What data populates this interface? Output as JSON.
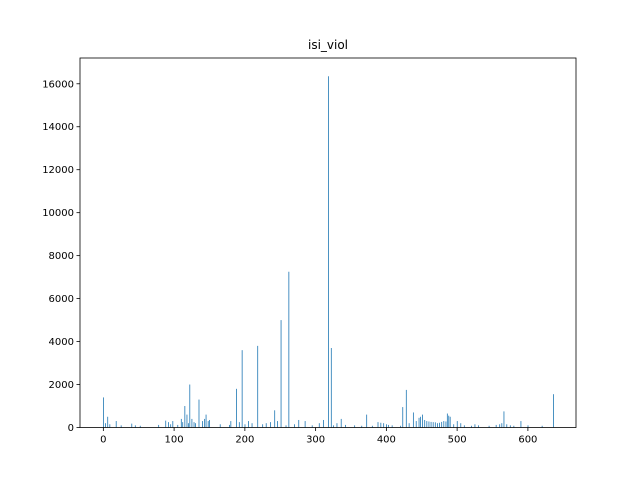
{
  "chart_data": {
    "type": "bar",
    "title": "isi_viol",
    "xlabel": "",
    "ylabel": "",
    "xlim": [
      -33,
      668
    ],
    "ylim": [
      0,
      17200
    ],
    "xticks": [
      0,
      100,
      200,
      300,
      400,
      500,
      600
    ],
    "yticks": [
      0,
      2000,
      4000,
      6000,
      8000,
      10000,
      12000,
      14000,
      16000
    ],
    "grid": false,
    "bar_color": "#1f77b4",
    "x": [
      0,
      3,
      6,
      9,
      18,
      25,
      40,
      45,
      52,
      78,
      88,
      92,
      95,
      98,
      105,
      110,
      112,
      115,
      118,
      120,
      122,
      125,
      128,
      130,
      135,
      140,
      143,
      145,
      148,
      150,
      165,
      178,
      180,
      188,
      192,
      196,
      200,
      205,
      210,
      218,
      225,
      230,
      236,
      242,
      246,
      251,
      258,
      262,
      270,
      276,
      285,
      295,
      305,
      311,
      318,
      322,
      325,
      330,
      336,
      342,
      355,
      365,
      372,
      380,
      388,
      392,
      396,
      400,
      403,
      408,
      420,
      423,
      428,
      432,
      438,
      442,
      446,
      448,
      451,
      454,
      457,
      460,
      463,
      466,
      469,
      472,
      475,
      478,
      481,
      484,
      486,
      488,
      490,
      495,
      500,
      505,
      510,
      520,
      525,
      530,
      545,
      555,
      560,
      563,
      566,
      570,
      575,
      580,
      590,
      600,
      620,
      636
    ],
    "values": [
      1400,
      200,
      500,
      150,
      300,
      100,
      180,
      100,
      80,
      120,
      320,
      250,
      150,
      300,
      120,
      400,
      250,
      1000,
      600,
      200,
      2000,
      400,
      250,
      200,
      1300,
      300,
      400,
      600,
      300,
      350,
      150,
      120,
      300,
      1800,
      250,
      3600,
      150,
      300,
      200,
      3800,
      150,
      200,
      250,
      800,
      300,
      5000,
      100,
      7250,
      150,
      350,
      300,
      100,
      200,
      350,
      16350,
      3700,
      100,
      200,
      400,
      120,
      100,
      80,
      600,
      80,
      250,
      220,
      200,
      150,
      120,
      100,
      80,
      950,
      1750,
      200,
      700,
      300,
      450,
      500,
      600,
      350,
      300,
      280,
      260,
      250,
      240,
      200,
      220,
      260,
      300,
      280,
      650,
      550,
      500,
      150,
      300,
      200,
      100,
      80,
      150,
      100,
      80,
      120,
      150,
      200,
      750,
      150,
      100,
      80,
      300,
      100,
      80,
      1550
    ]
  }
}
